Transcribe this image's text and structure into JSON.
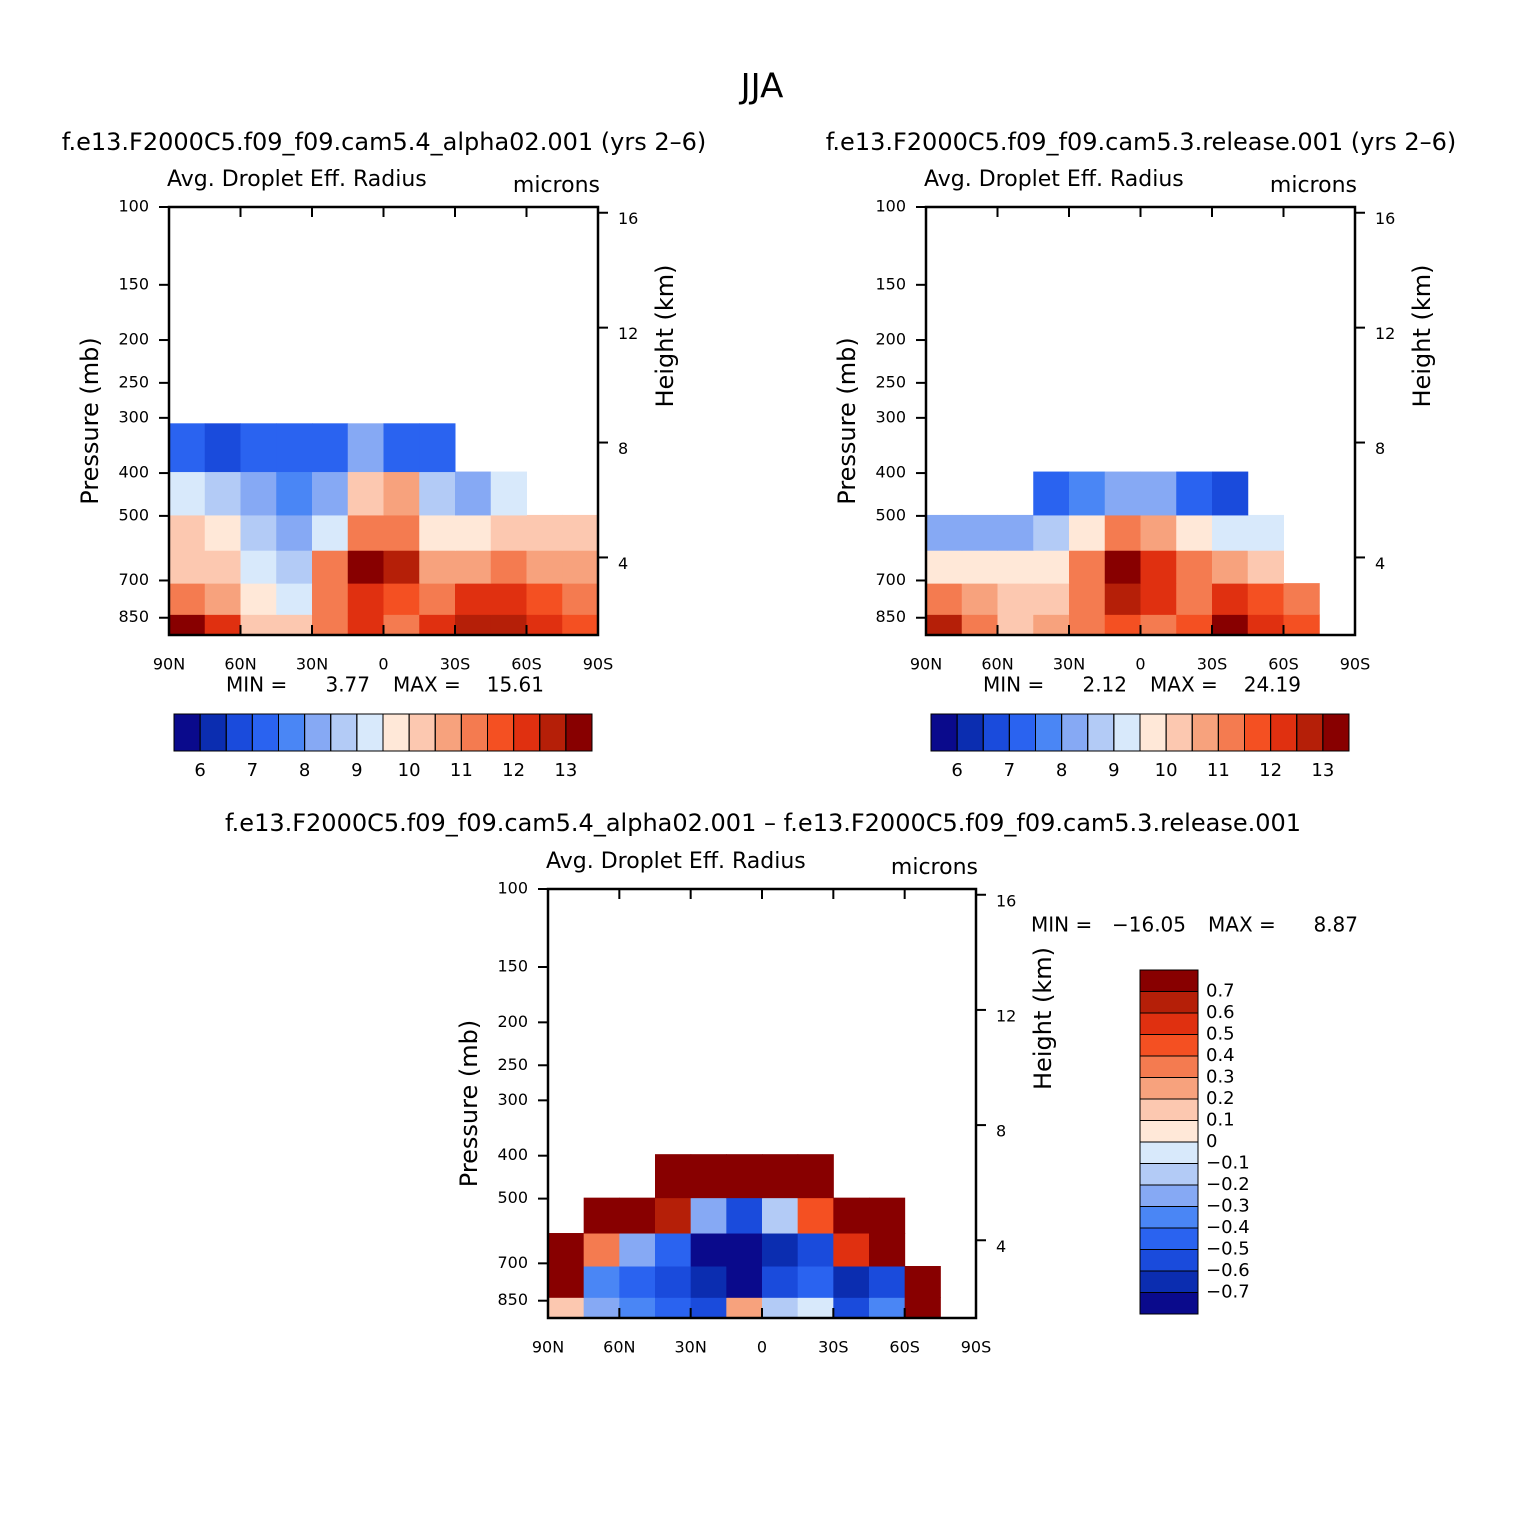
{
  "title": "JJA",
  "chart_data": [
    {
      "type": "contour",
      "subtitle": "f.e13.F2000C5.f09_f09.cam5.4_alpha02.001 (yrs 2–6)",
      "title_left": "Avg. Droplet Eff. Radius",
      "title_right": "microns",
      "ylabel": "Pressure (mb)",
      "y2label": "Height (km)",
      "xlim": [
        90,
        -90
      ],
      "xticks": [
        {
          "value": 90,
          "label": "90N"
        },
        {
          "value": 60,
          "label": "60N"
        },
        {
          "value": 30,
          "label": "30N"
        },
        0,
        {
          "value": -30,
          "label": "30S"
        },
        {
          "value": -60,
          "label": "60S"
        },
        {
          "value": -90,
          "label": "90S"
        }
      ],
      "ylim": [
        100,
        930
      ],
      "log_y": true,
      "yticks": [
        100,
        150,
        200,
        250,
        300,
        400,
        500,
        700,
        850
      ],
      "y2lim": [
        1.3,
        16.2
      ],
      "y2ticks": [
        4,
        8,
        12,
        16
      ],
      "x": [
        82.5,
        67.5,
        52.5,
        37.5,
        22.5,
        7.5,
        -7.5,
        -22.5,
        -37.5,
        -52.5,
        -67.5,
        -82.5
      ],
      "y": [
        900,
        775,
        650,
        550,
        450,
        350
      ],
      "z": [
        [
          13,
          12,
          10,
          10,
          11,
          12,
          11,
          12,
          12.5,
          12.5,
          12,
          11.5
        ],
        [
          11,
          10.5,
          9.5,
          9,
          11,
          12,
          11.5,
          11,
          12,
          12,
          11.5,
          11
        ],
        [
          10,
          10,
          9,
          8.5,
          11,
          13,
          12.5,
          10.5,
          10.5,
          11,
          10.5,
          10.5
        ],
        [
          10,
          9.5,
          8.5,
          8,
          9,
          11,
          11,
          9.5,
          9.5,
          10,
          10,
          10
        ],
        [
          9,
          8.5,
          8,
          7.5,
          8,
          10,
          10.5,
          8.5,
          8,
          9,
          null,
          null
        ],
        [
          7,
          6.5,
          7,
          7,
          7,
          8,
          7,
          7,
          null,
          null,
          null,
          null
        ]
      ],
      "stats": [
        {
          "label": "MIN =",
          "value": 3.77
        },
        {
          "label": "MAX =",
          "value": 15.61
        }
      ],
      "colorbar": {
        "orientation": "horizontal",
        "levels": [
          6,
          6.5,
          7,
          7.5,
          8,
          8.5,
          9,
          9.5,
          10,
          10.5,
          11,
          11.5,
          12,
          12.5,
          13
        ],
        "colors": [
          "#0a0a8c",
          "#0b2db0",
          "#1a4bdc",
          "#2a63f0",
          "#4a86f5",
          "#86a9f4",
          "#b3cbf6",
          "#d8e9fb",
          "#ffe8d8",
          "#fcc8b0",
          "#f7a27d",
          "#f47b50",
          "#f45022",
          "#e03010",
          "#b51f08",
          "#880000"
        ],
        "ticks": [
          6,
          7,
          8,
          9,
          10,
          11,
          12,
          13
        ]
      }
    },
    {
      "type": "contour",
      "subtitle": "f.e13.F2000C5.f09_f09.cam5.3.release.001 (yrs 2–6)",
      "title_left": "Avg. Droplet Eff. Radius",
      "title_right": "microns",
      "ylabel": "Pressure (mb)",
      "y2label": "Height (km)",
      "xlim": [
        90,
        -90
      ],
      "xticks": [
        {
          "value": 90,
          "label": "90N"
        },
        {
          "value": 60,
          "label": "60N"
        },
        {
          "value": 30,
          "label": "30N"
        },
        0,
        {
          "value": -30,
          "label": "30S"
        },
        {
          "value": -60,
          "label": "60S"
        },
        {
          "value": -90,
          "label": "90S"
        }
      ],
      "ylim": [
        100,
        930
      ],
      "log_y": true,
      "yticks": [
        100,
        150,
        200,
        250,
        300,
        400,
        500,
        700,
        850
      ],
      "y2lim": [
        1.3,
        16.2
      ],
      "y2ticks": [
        4,
        8,
        12,
        16
      ],
      "x": [
        82.5,
        67.5,
        52.5,
        37.5,
        22.5,
        7.5,
        -7.5,
        -22.5,
        -37.5,
        -52.5,
        -67.5,
        -82.5
      ],
      "y": [
        900,
        775,
        650,
        550,
        450,
        350
      ],
      "z": [
        [
          12.5,
          11,
          10,
          10.5,
          11,
          11.5,
          11,
          11.5,
          13,
          12,
          11.5,
          null
        ],
        [
          11,
          10.5,
          10,
          10,
          11,
          12.5,
          12,
          11,
          12,
          11.5,
          11,
          null
        ],
        [
          9.5,
          9.5,
          9.5,
          9.5,
          11,
          13,
          12,
          11,
          10.5,
          10,
          null,
          null
        ],
        [
          8,
          8,
          8,
          8.5,
          9.5,
          11,
          10.5,
          9.5,
          9,
          9,
          null,
          null
        ],
        [
          null,
          null,
          null,
          7,
          7.5,
          8,
          8,
          7,
          6.5,
          null,
          null,
          null
        ],
        [
          null,
          null,
          null,
          null,
          null,
          null,
          null,
          null,
          null,
          null,
          null,
          null
        ]
      ],
      "stats": [
        {
          "label": "MIN =",
          "value": 2.12
        },
        {
          "label": "MAX =",
          "value": 24.19
        }
      ],
      "colorbar": {
        "orientation": "horizontal",
        "levels": [
          6,
          6.5,
          7,
          7.5,
          8,
          8.5,
          9,
          9.5,
          10,
          10.5,
          11,
          11.5,
          12,
          12.5,
          13
        ],
        "colors": [
          "#0a0a8c",
          "#0b2db0",
          "#1a4bdc",
          "#2a63f0",
          "#4a86f5",
          "#86a9f4",
          "#b3cbf6",
          "#d8e9fb",
          "#ffe8d8",
          "#fcc8b0",
          "#f7a27d",
          "#f47b50",
          "#f45022",
          "#e03010",
          "#b51f08",
          "#880000"
        ],
        "ticks": [
          6,
          7,
          8,
          9,
          10,
          11,
          12,
          13
        ]
      }
    },
    {
      "type": "contour",
      "subtitle": "f.e13.F2000C5.f09_f09.cam5.4_alpha02.001 – f.e13.F2000C5.f09_f09.cam5.3.release.001",
      "title_left": "Avg. Droplet Eff. Radius",
      "title_right": "microns",
      "ylabel": "Pressure (mb)",
      "y2label": "Height (km)",
      "xlim": [
        90,
        -90
      ],
      "xticks": [
        {
          "value": 90,
          "label": "90N"
        },
        {
          "value": 60,
          "label": "60N"
        },
        {
          "value": 30,
          "label": "30N"
        },
        0,
        {
          "value": -30,
          "label": "30S"
        },
        {
          "value": -60,
          "label": "60S"
        },
        {
          "value": -90,
          "label": "90S"
        }
      ],
      "ylim": [
        100,
        930
      ],
      "log_y": true,
      "yticks": [
        100,
        150,
        200,
        250,
        300,
        400,
        500,
        700,
        850
      ],
      "y2lim": [
        1.3,
        16.2
      ],
      "y2ticks": [
        4,
        8,
        12,
        16
      ],
      "x": [
        82.5,
        67.5,
        52.5,
        37.5,
        22.5,
        7.5,
        -7.5,
        -22.5,
        -37.5,
        -52.5,
        -67.5,
        -82.5
      ],
      "y": [
        900,
        775,
        650,
        550,
        450,
        350
      ],
      "z": [
        [
          0.1,
          -0.3,
          -0.4,
          -0.5,
          -0.6,
          0.2,
          -0.2,
          -0.1,
          -0.6,
          -0.4,
          0.7,
          null
        ],
        [
          0.8,
          -0.4,
          -0.5,
          -0.6,
          -0.7,
          -0.8,
          -0.6,
          -0.5,
          -0.7,
          -0.6,
          0.8,
          null
        ],
        [
          0.9,
          0.3,
          -0.3,
          -0.5,
          -0.8,
          -0.9,
          -0.7,
          -0.6,
          0.5,
          0.9,
          null,
          null
        ],
        [
          null,
          0.9,
          0.9,
          0.6,
          -0.3,
          -0.6,
          -0.2,
          0.4,
          0.9,
          0.9,
          null,
          null
        ],
        [
          null,
          null,
          null,
          0.9,
          0.9,
          0.9,
          0.9,
          0.9,
          null,
          null,
          null,
          null
        ],
        [
          null,
          null,
          null,
          null,
          null,
          null,
          null,
          null,
          null,
          null,
          null,
          null
        ]
      ],
      "stats": [
        {
          "label": "MIN =",
          "value": -16.05,
          "value_label": "−16.05"
        },
        {
          "label": "MAX =",
          "value": 8.87
        }
      ],
      "colorbar": {
        "orientation": "vertical",
        "levels": [
          -0.7,
          -0.6,
          -0.5,
          -0.4,
          -0.3,
          -0.2,
          -0.1,
          0,
          0.1,
          0.2,
          0.3,
          0.4,
          0.5,
          0.6,
          0.7
        ],
        "colors": [
          "#0a0a8c",
          "#0b2db0",
          "#1a4bdc",
          "#2a63f0",
          "#4a86f5",
          "#86a9f4",
          "#b3cbf6",
          "#d8e9fb",
          "#ffe8d8",
          "#fcc8b0",
          "#f7a27d",
          "#f47b50",
          "#f45022",
          "#e03010",
          "#b51f08",
          "#880000"
        ],
        "ticks": [
          {
            "value": -0.7,
            "label": "−0.7"
          },
          {
            "value": -0.6,
            "label": "−0.6"
          },
          {
            "value": -0.5,
            "label": "−0.5"
          },
          {
            "value": -0.4,
            "label": "−0.4"
          },
          {
            "value": -0.3,
            "label": "−0.3"
          },
          {
            "value": -0.2,
            "label": "−0.2"
          },
          {
            "value": -0.1,
            "label": "−0.1"
          },
          0,
          0.1,
          0.2,
          0.3,
          0.4,
          0.5,
          0.6,
          0.7
        ]
      }
    }
  ]
}
